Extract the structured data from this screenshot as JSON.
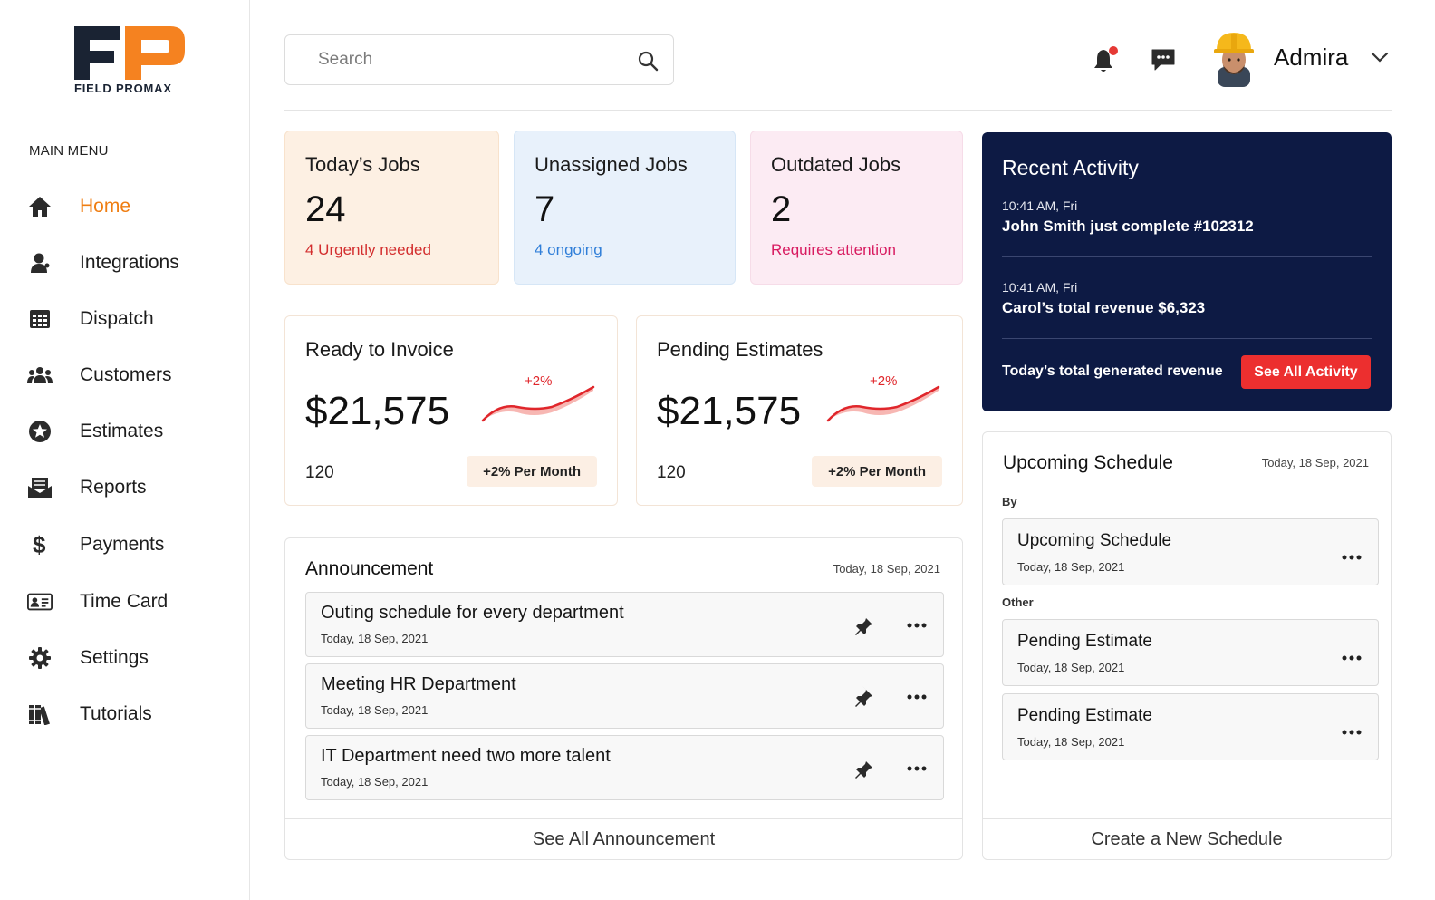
{
  "brand": {
    "logo_text": "FIELD PROMAX",
    "colors": {
      "orange": "#F58220",
      "navy": "#1A2333"
    }
  },
  "sidebar": {
    "menu_title": "MAIN MENU",
    "items": [
      {
        "label": "Home",
        "icon": "home-icon",
        "active": true
      },
      {
        "label": "Integrations",
        "icon": "user-icon"
      },
      {
        "label": "Dispatch",
        "icon": "calendar-grid-icon"
      },
      {
        "label": "Customers",
        "icon": "users-icon"
      },
      {
        "label": "Estimates",
        "icon": "star-circle-icon"
      },
      {
        "label": "Reports",
        "icon": "envelope-icon"
      },
      {
        "label": "Payments",
        "icon": "dollar-icon"
      },
      {
        "label": "Time Card",
        "icon": "id-card-icon"
      },
      {
        "label": "Settings",
        "icon": "gear-icon"
      },
      {
        "label": "Tutorials",
        "icon": "books-icon"
      }
    ]
  },
  "header": {
    "search_placeholder": "Search",
    "user_name": "Admira",
    "notification_dot_color": "#E53935"
  },
  "stats": [
    {
      "title": "Today’s Jobs",
      "value": "24",
      "sub": "4 Urgently needed",
      "sub_color": "#D32F2F",
      "bg": "#FDF0E3",
      "border": "#F8E2CC"
    },
    {
      "title": "Unassigned Jobs",
      "value": "7",
      "sub": "4 ongoing",
      "sub_color": "#2F7ED8",
      "bg": "#E8F1FB",
      "border": "#D6E6F6"
    },
    {
      "title": "Outdated Jobs",
      "value": "2",
      "sub": "Requires attention",
      "sub_color": "#D81B60",
      "bg": "#FCEBF3",
      "border": "#F6DCE8"
    }
  ],
  "money_cards": [
    {
      "title": "Ready to Invoice",
      "value": "$21,575",
      "count": "120",
      "badge": "+2% Per Month",
      "trend": "+2%"
    },
    {
      "title": "Pending Estimates",
      "value": "$21,575",
      "count": "120",
      "badge": "+2% Per Month",
      "trend": "+2%"
    }
  ],
  "announcement": {
    "title": "Announcement",
    "date": "Today, 18 Sep, 2021",
    "items": [
      {
        "title": "Outing schedule for every department",
        "date": "Today, 18 Sep, 2021"
      },
      {
        "title": "Meeting HR Department",
        "date": "Today, 18 Sep, 2021"
      },
      {
        "title": "IT Department need two more talent",
        "date": "Today, 18 Sep, 2021"
      }
    ],
    "footer": "See All Announcement"
  },
  "activity": {
    "title": "Recent Activity",
    "items": [
      {
        "time": "10:41 AM, Fri",
        "text": "John Smith just complete #102312"
      },
      {
        "time": "10:41 AM, Fri",
        "text": "Carol’s total revenue $6,323"
      }
    ],
    "footer_text": "Today’s total generated revenue",
    "button": "See All Activity"
  },
  "schedule": {
    "title": "Upcoming Schedule",
    "date": "Today, 18 Sep, 2021",
    "by_label": "By",
    "other_label": "Other",
    "by_items": [
      {
        "title": "Upcoming Schedule",
        "date": "Today, 18 Sep, 2021"
      }
    ],
    "other_items": [
      {
        "title": "Pending Estimate",
        "date": "Today, 18 Sep, 2021"
      },
      {
        "title": "Pending Estimate",
        "date": "Today, 18 Sep, 2021"
      }
    ],
    "footer": "Create a New Schedule"
  }
}
